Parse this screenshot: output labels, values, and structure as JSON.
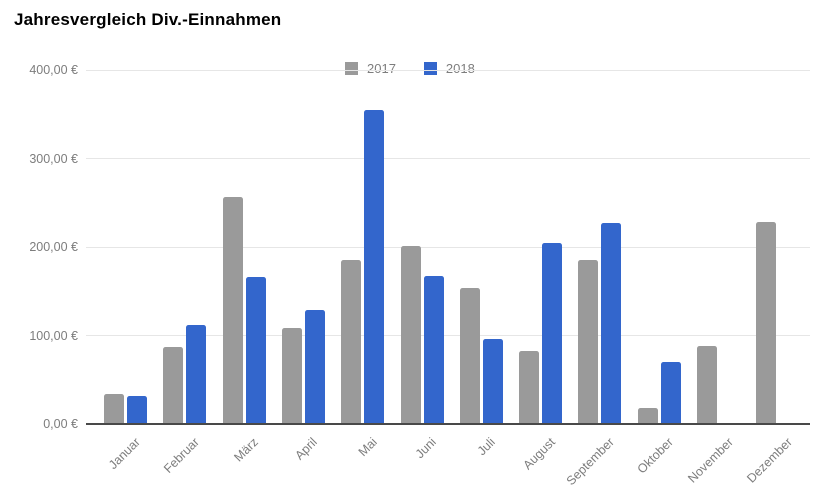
{
  "title": "Jahresvergleich Div.-Einnahmen",
  "colors": {
    "series_2017": "#9a9a9a",
    "series_2018": "#3366cc",
    "gridline": "#e6e6e6",
    "axis_line": "#494949",
    "tick_label": "#7d7d7d",
    "title_text": "#000000",
    "background": "#ffffff"
  },
  "legend": {
    "items": [
      {
        "label": "2017",
        "color": "#9a9a9a"
      },
      {
        "label": "2018",
        "color": "#3366cc"
      }
    ]
  },
  "chart_data": {
    "type": "bar",
    "title": "Jahresvergleich Div.-Einnahmen",
    "categories": [
      "Januar",
      "Februar",
      "März",
      "April",
      "Mai",
      "Juni",
      "Juli",
      "August",
      "September",
      "Oktober",
      "November",
      "Dezember"
    ],
    "series": [
      {
        "name": "2017",
        "color": "#9a9a9a",
        "values": [
          34,
          87,
          256,
          108,
          185,
          201,
          154,
          83,
          185,
          18,
          88,
          228
        ]
      },
      {
        "name": "2018",
        "color": "#3366cc",
        "values": [
          32,
          112,
          166,
          129,
          355,
          167,
          96,
          204,
          227,
          70,
          0,
          0
        ]
      }
    ],
    "xlabel": "",
    "ylabel": "",
    "ylim": [
      0,
      400
    ],
    "ytick_step": 100,
    "ytick_labels": [
      "0,00 €",
      "100,00 €",
      "200,00 €",
      "300,00 €",
      "400,00 €"
    ],
    "grid": true,
    "legend_position": "top-center"
  }
}
